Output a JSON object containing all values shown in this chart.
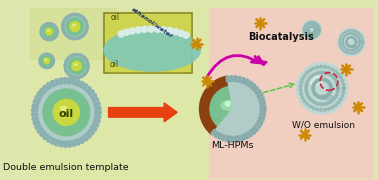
{
  "bg_left_color": "#dde8b0",
  "bg_right_color": "#f5d5c8",
  "label_double_emulsion": "Double emulsion template",
  "label_ml_hpms": "ML-HPMs",
  "label_biocatalysis": "Biocatalysis",
  "label_wo_emulsion": "W/O emulsion",
  "label_oil": "oil",
  "label_oil2": "oil",
  "label_ethanol_water": "ethanol/water",
  "arrow_color": "#e84010",
  "biocatalysis_arrow_color": "#cc00aa",
  "star_color": "#cc8800",
  "dashed_circle_color": "#44cc44",
  "inset_bg": "#d8e870",
  "sphere_outer_color": "#a0c8c0",
  "sphere_inner_color": "#80c080",
  "sphere_core_color": "#c8d840",
  "sphere_shell_color": "#b8d8d0",
  "golf_sphere_color": "#b8d8d4",
  "brown_cut_color": "#8B4513",
  "dashed_red_color": "#cc2244",
  "inset_border_color": "#88aa20"
}
